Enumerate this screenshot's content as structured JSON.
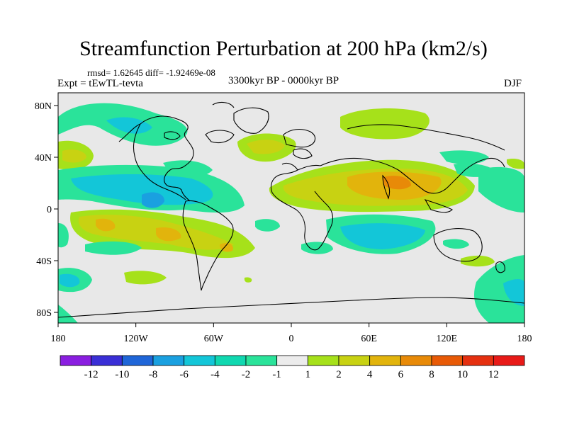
{
  "title": "Streamfunction Perturbation at 200 hPa (km2/s)",
  "stats": {
    "rmsd_label": "rmsd= 1.62645 diff= -1.92469e-08"
  },
  "experiment": "Expt = tEwTL-tevta",
  "period": "3300kyr BP - 0000kyr BP",
  "season": "DJF",
  "map": {
    "lat_labels": [
      "80N",
      "40N",
      "0",
      "40S",
      "80S"
    ],
    "lon_labels": [
      "180",
      "120W",
      "60W",
      "0",
      "60E",
      "120E",
      "180"
    ],
    "background_color": "#e8e8e8",
    "coast_color": "#000000"
  },
  "colorbar": {
    "labels": [
      "-12",
      "-10",
      "-8",
      "-6",
      "-4",
      "-2",
      "-1",
      "1",
      "2",
      "4",
      "6",
      "8",
      "10",
      "12"
    ],
    "colors": [
      "#8a1ee0",
      "#3a2fd6",
      "#1f66d8",
      "#1aa0e0",
      "#13c6d8",
      "#10d8b0",
      "#2ae39a",
      "#ececec",
      "#a6e11a",
      "#c8d212",
      "#e2b40c",
      "#e88a08",
      "#e85a06",
      "#e53010",
      "#e81a18"
    ]
  },
  "regions": [
    {
      "name": "north-pacific-positive-1",
      "value": 2,
      "color": "#a6e11a"
    },
    {
      "name": "north-pacific-negative",
      "value": -2,
      "color": "#2ae39a"
    },
    {
      "name": "north-atlantic-positive",
      "value": 4,
      "color": "#c8d212"
    },
    {
      "name": "asia-positive",
      "value": 6,
      "color": "#e2b40c"
    },
    {
      "name": "south-america-positive",
      "value": 6,
      "color": "#e2b40c"
    },
    {
      "name": "indian-ocean-negative",
      "value": -4,
      "color": "#13c6d8"
    },
    {
      "name": "west-africa-negative",
      "value": -2,
      "color": "#2ae39a"
    },
    {
      "name": "north-arctic-positive",
      "value": 2,
      "color": "#a6e11a"
    }
  ]
}
